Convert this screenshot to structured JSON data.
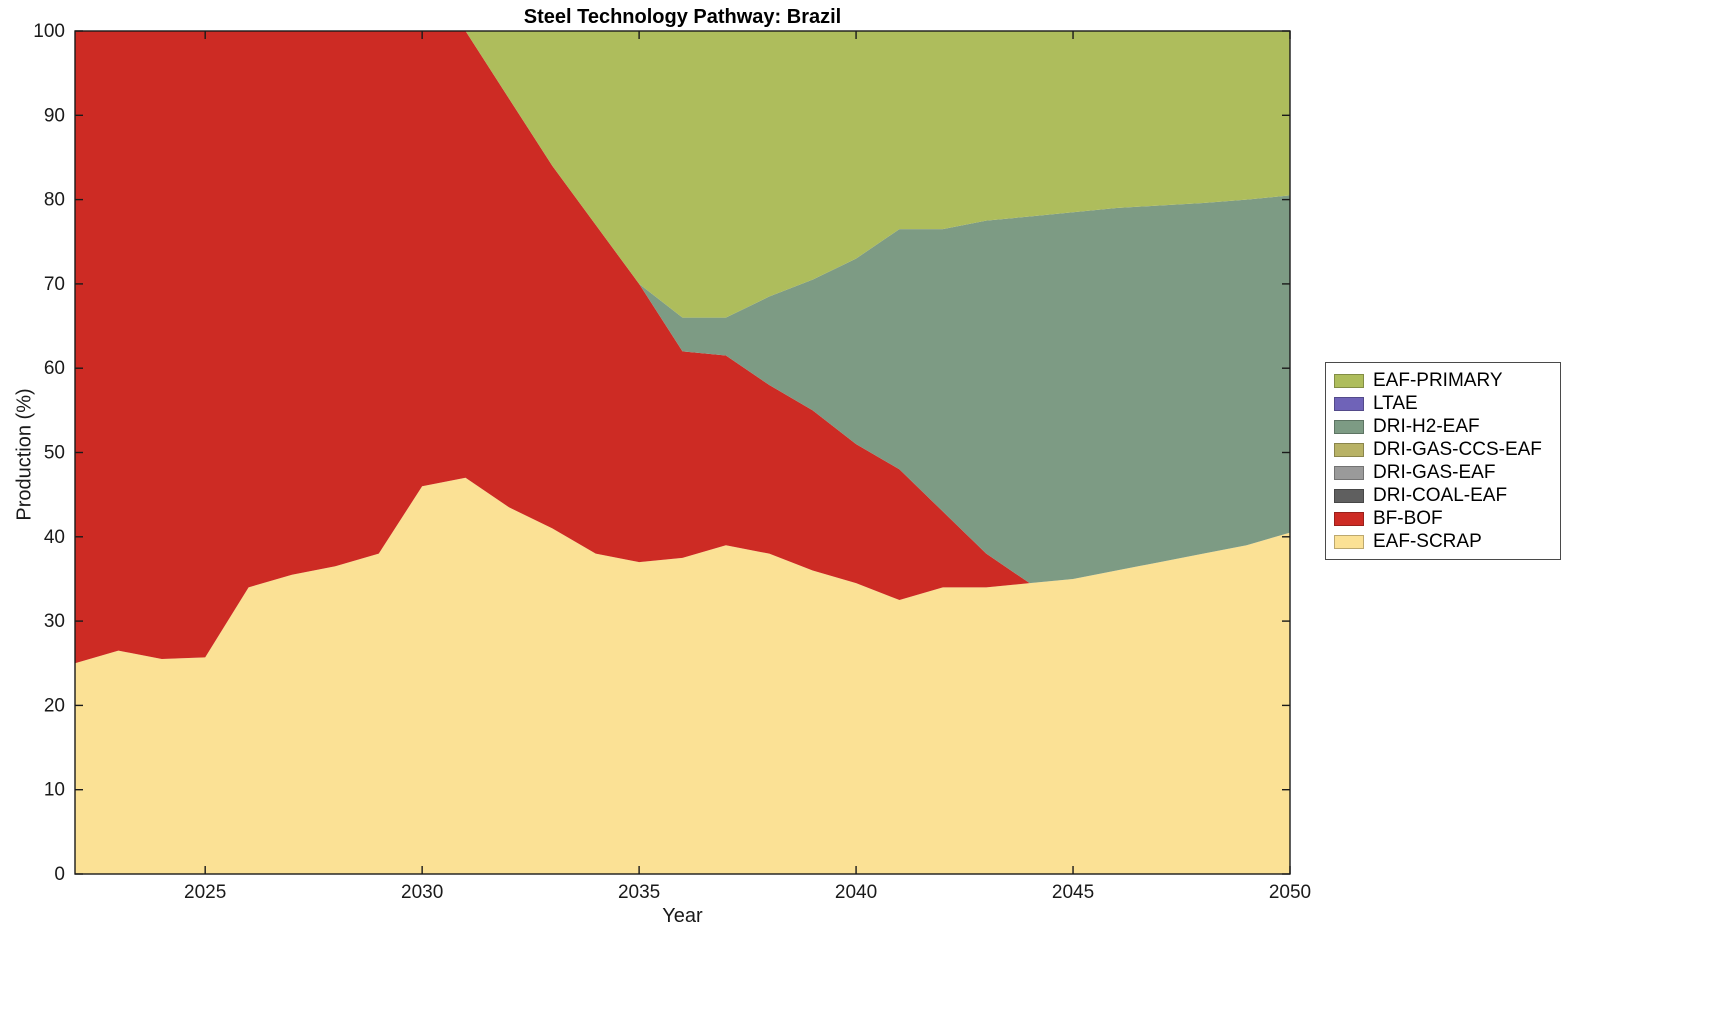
{
  "chart_data": {
    "type": "area",
    "stacked": true,
    "title": "Steel Technology Pathway: Brazil",
    "xlabel": "Year",
    "ylabel": "Production (%)",
    "xlim": [
      2022,
      2050
    ],
    "ylim": [
      0,
      100
    ],
    "xticks": [
      2025,
      2030,
      2035,
      2040,
      2045,
      2050
    ],
    "yticks": [
      0,
      10,
      20,
      30,
      40,
      50,
      60,
      70,
      80,
      90,
      100
    ],
    "grid": false,
    "x": [
      2022,
      2023,
      2024,
      2025,
      2026,
      2027,
      2028,
      2029,
      2030,
      2031,
      2032,
      2033,
      2034,
      2035,
      2036,
      2037,
      2038,
      2039,
      2040,
      2041,
      2042,
      2043,
      2044,
      2045,
      2046,
      2047,
      2048,
      2049,
      2050
    ],
    "series": [
      {
        "name": "EAF-SCRAP",
        "color": "#fbe195",
        "values": [
          25,
          26.5,
          25.5,
          25.7,
          34,
          35.5,
          36.5,
          38,
          46,
          47,
          43.5,
          41,
          38,
          37,
          37.5,
          39,
          38,
          36,
          34.5,
          32.5,
          34,
          34,
          34.5,
          35,
          36,
          37,
          38,
          39,
          40.5
        ]
      },
      {
        "name": "BF-BOF",
        "color": "#cd2b24",
        "values": [
          75,
          73.5,
          74.5,
          74.3,
          66,
          64.5,
          63.5,
          62,
          54,
          53,
          48.5,
          43,
          39,
          33,
          24.5,
          22.5,
          20,
          19,
          16.5,
          15.5,
          9,
          4,
          0,
          0,
          0,
          0,
          0,
          0,
          0
        ]
      },
      {
        "name": "DRI-COAL-EAF",
        "color": "#5f5f5f",
        "values": [
          0,
          0,
          0,
          0,
          0,
          0,
          0,
          0,
          0,
          0,
          0,
          0,
          0,
          0,
          0,
          0,
          0,
          0,
          0,
          0,
          0,
          0,
          0,
          0,
          0,
          0,
          0,
          0,
          0
        ]
      },
      {
        "name": "DRI-GAS-EAF",
        "color": "#9a9a9a",
        "values": [
          0,
          0,
          0,
          0,
          0,
          0,
          0,
          0,
          0,
          0,
          0,
          0,
          0,
          0,
          0,
          0,
          0,
          0,
          0,
          0,
          0,
          0,
          0,
          0,
          0,
          0,
          0,
          0,
          0
        ]
      },
      {
        "name": "DRI-GAS-CCS-EAF",
        "color": "#b8b266",
        "values": [
          0,
          0,
          0,
          0,
          0,
          0,
          0,
          0,
          0,
          0,
          0,
          0,
          0,
          0,
          0,
          0,
          0,
          0,
          0,
          0,
          0,
          0,
          0,
          0,
          0,
          0,
          0,
          0,
          0
        ]
      },
      {
        "name": "DRI-H2-EAF",
        "color": "#7d9b84",
        "values": [
          0,
          0,
          0,
          0,
          0,
          0,
          0,
          0,
          0,
          0,
          0,
          0,
          0,
          0,
          4,
          4.5,
          10.5,
          15.5,
          22,
          28.5,
          33.5,
          39.5,
          43.5,
          43.5,
          43,
          42.3,
          41.6,
          41,
          40
        ]
      },
      {
        "name": "LTAE",
        "color": "#6f63b8",
        "values": [
          0,
          0,
          0,
          0,
          0,
          0,
          0,
          0,
          0,
          0,
          0,
          0,
          0,
          0,
          0,
          0,
          0,
          0,
          0,
          0,
          0,
          0,
          0,
          0,
          0,
          0,
          0,
          0,
          0
        ]
      },
      {
        "name": "EAF-PRIMARY",
        "color": "#aebd5c",
        "values": [
          0,
          0,
          0,
          0,
          0,
          0,
          0,
          0,
          0,
          0,
          8,
          16,
          23,
          30,
          34,
          34,
          31.5,
          29.5,
          27,
          23.5,
          23.5,
          22.5,
          22,
          21.5,
          21,
          20.7,
          20.4,
          20,
          19.5
        ]
      }
    ],
    "legend": {
      "position": "right-outside",
      "entries": [
        "EAF-PRIMARY",
        "LTAE",
        "DRI-H2-EAF",
        "DRI-GAS-CCS-EAF",
        "DRI-GAS-EAF",
        "DRI-COAL-EAF",
        "BF-BOF",
        "EAF-SCRAP"
      ]
    }
  }
}
